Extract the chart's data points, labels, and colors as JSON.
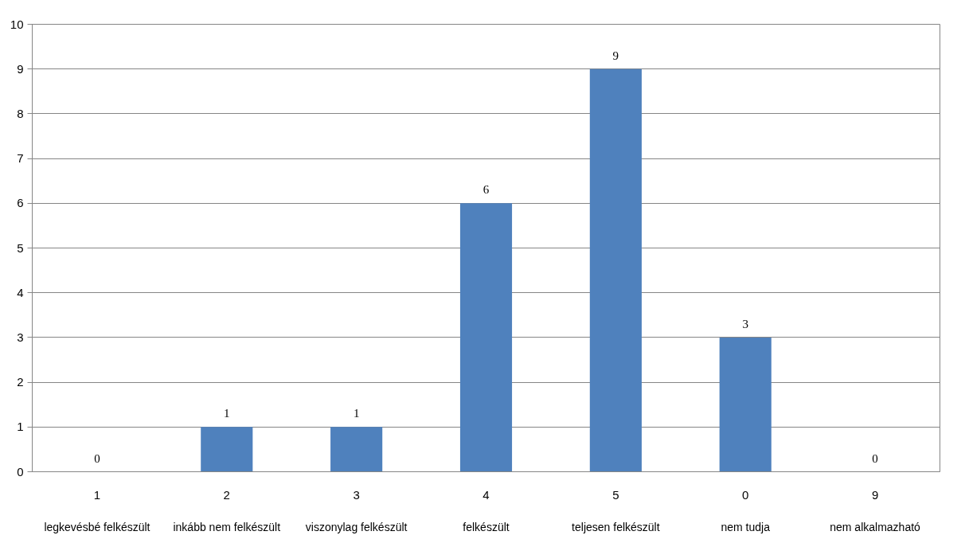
{
  "chart_data": {
    "type": "bar",
    "categories": [
      "legkevésbé felkészült",
      "inkább nem felkészült",
      "viszonylag felkészült",
      "felkészült",
      "teljesen felkészült",
      "nem tudja",
      "nem alkalmazható"
    ],
    "annotations": [
      "1",
      "2",
      "3",
      "4",
      "5",
      "0",
      "9"
    ],
    "values": [
      0,
      1,
      1,
      6,
      9,
      3,
      0
    ],
    "color": "#4f81bd",
    "ylim": [
      0,
      10
    ],
    "yticks": [
      0,
      1,
      2,
      3,
      4,
      5,
      6,
      7,
      8,
      9,
      10
    ],
    "grid": "y",
    "data_labels": true
  }
}
